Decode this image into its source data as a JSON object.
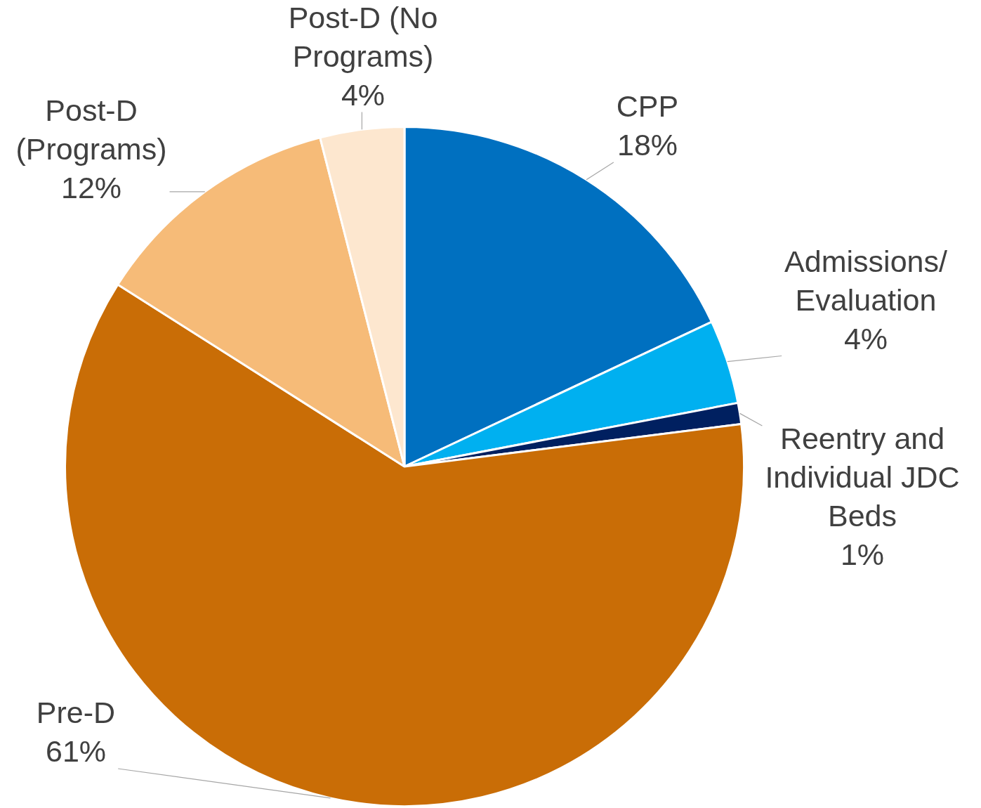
{
  "chart_data": {
    "type": "pie",
    "categories": [
      "CPP",
      "Admissions/Evaluation",
      "Reentry and Individual JDC Beds",
      "Pre-D",
      "Post-D (Programs)",
      "Post-D (No Programs)"
    ],
    "values": [
      18,
      4,
      1,
      61,
      12,
      4
    ],
    "colors": [
      "#0070c0",
      "#00b0f0",
      "#002060",
      "#c96d06",
      "#f6bb78",
      "#fde7cf"
    ],
    "value_labels": [
      "18%",
      "4%",
      "1%",
      "61%",
      "12%",
      "4%"
    ],
    "legend": false
  }
}
